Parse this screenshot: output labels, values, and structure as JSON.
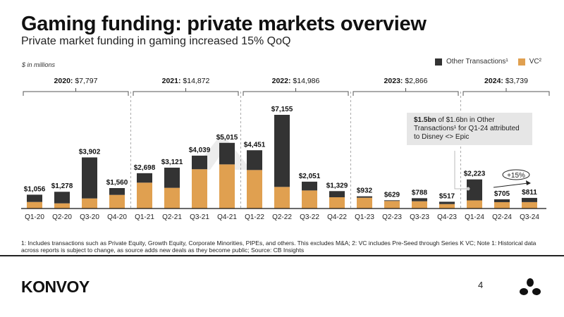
{
  "header": {
    "title": "Gaming funding: private markets overview",
    "subtitle": "Private market funding in gaming increased 15% QoQ",
    "units": "$ in millions"
  },
  "legend": {
    "other": "Other Transactions¹",
    "vc": "VC²"
  },
  "callout": {
    "bold": "$1.5bn",
    "text": " of $1.6bn in Other Transactions¹ for Q1-24 attributed to Disney <> Epic"
  },
  "growth_badge": "+15%",
  "watermark": "KONVOY",
  "footnote": "1: Includes transactions such as Private Equity, Growth Equity, Corporate Minorities, PIPEs, and others. This excludes M&A; 2: VC includes Pre-Seed through Series K VC; Note 1: Historical data across reports is subject to change, as source adds new deals as they become public; Source: CB Insights",
  "footer": {
    "logo": "KONVOY",
    "page": "4"
  },
  "colors": {
    "other": "#333333",
    "vc": "#E0A050"
  },
  "chart_data": {
    "type": "bar",
    "stacked": true,
    "title": "Private market funding in gaming",
    "ylabel": "$ in millions",
    "categories": [
      "Q1-20",
      "Q2-20",
      "Q3-20",
      "Q4-20",
      "Q1-21",
      "Q2-21",
      "Q3-21",
      "Q4-21",
      "Q1-22",
      "Q2-22",
      "Q3-22",
      "Q4-22",
      "Q1-23",
      "Q2-23",
      "Q3-23",
      "Q4-23",
      "Q1-24",
      "Q2-24",
      "Q3-24"
    ],
    "totals": [
      1056,
      1278,
      3902,
      1560,
      2698,
      3121,
      4039,
      5015,
      4451,
      7155,
      2051,
      1329,
      932,
      629,
      788,
      517,
      2223,
      705,
      811
    ],
    "total_labels": [
      "$1,056",
      "$1,278",
      "$3,902",
      "$1,560",
      "$2,698",
      "$3,121",
      "$4,039",
      "$5,015",
      "$4,451",
      "$7,155",
      "$2,051",
      "$1,329",
      "$932",
      "$629",
      "$788",
      "$517",
      "$2,223",
      "$705",
      "$811"
    ],
    "series": [
      {
        "name": "VC",
        "values": [
          500,
          395,
          770,
          1040,
          1975,
          1580,
          3000,
          3370,
          2940,
          1650,
          1380,
          860,
          825,
          575,
          555,
          340,
          620,
          485,
          490
        ]
      },
      {
        "name": "Other Transactions",
        "values": [
          556,
          883,
          3132,
          520,
          723,
          1541,
          1039,
          1645,
          1511,
          5505,
          671,
          469,
          107,
          54,
          233,
          177,
          1603,
          220,
          321
        ]
      }
    ],
    "years": [
      {
        "year": "2020:",
        "total": "$7,797"
      },
      {
        "year": "2021:",
        "total": "$14,872"
      },
      {
        "year": "2022:",
        "total": "$14,986"
      },
      {
        "year": "2023:",
        "total": "$2,866"
      },
      {
        "year": "2024:",
        "total": "$3,739"
      }
    ],
    "ylim": [
      0,
      7500
    ]
  }
}
